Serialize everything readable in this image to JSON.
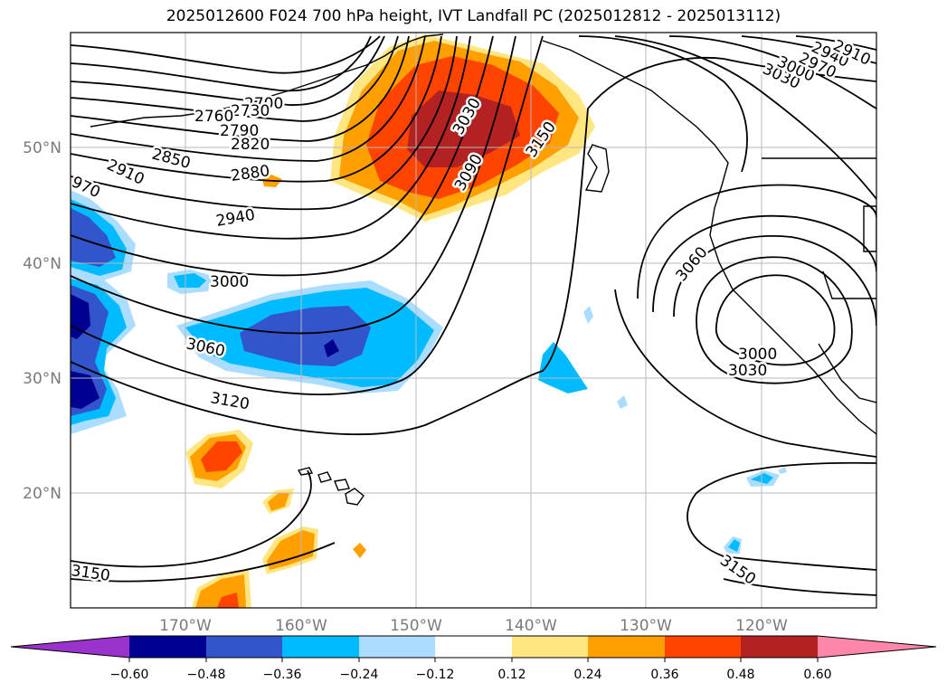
{
  "title": "2025012600 F024 700 hPa height, IVT Landfall PC (2025012812 - 2025013112)",
  "map": {
    "projection": "cylindrical",
    "lon_range": [
      -180,
      -110
    ],
    "lat_range": [
      10,
      60
    ],
    "lat_ticks": [
      {
        "value": 20,
        "label": "20°N"
      },
      {
        "value": 30,
        "label": "30°N"
      },
      {
        "value": 40,
        "label": "40°N"
      },
      {
        "value": 50,
        "label": "50°N"
      }
    ],
    "lon_ticks": [
      {
        "value": -170,
        "label": "170°W"
      },
      {
        "value": -160,
        "label": "160°W"
      },
      {
        "value": -150,
        "label": "150°W"
      },
      {
        "value": -140,
        "label": "140°W"
      },
      {
        "value": -130,
        "label": "130°W"
      },
      {
        "value": -120,
        "label": "120°W"
      }
    ],
    "gridlines": true,
    "contour_labels": [
      "2700",
      "2730",
      "2760",
      "2790",
      "2820",
      "2850",
      "2880",
      "2910",
      "2940",
      "970",
      "3000",
      "3060",
      "3120",
      "3150",
      "3030",
      "3090",
      "3150",
      "3060",
      "3000",
      "3030",
      "3150",
      "3030",
      "3000",
      "2970",
      "2940",
      "2910"
    ]
  },
  "colorbar": {
    "orientation": "horizontal",
    "extend": "both",
    "colors": [
      "#9933cc",
      "#000090",
      "#3355cc",
      "#00bbff",
      "#aaddff",
      "#ffffff",
      "#ffe680",
      "#ffa000",
      "#ff4400",
      "#b22222",
      "#ff88aa"
    ],
    "ticks": [
      "−0.60",
      "−0.48",
      "−0.36",
      "−0.24",
      "−0.12",
      "0.12",
      "0.24",
      "0.36",
      "0.48",
      "0.60"
    ]
  }
}
